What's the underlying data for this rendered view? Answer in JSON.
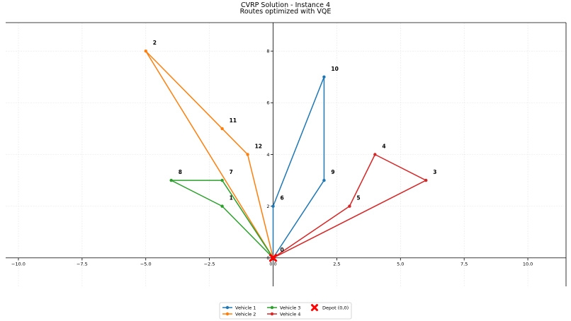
{
  "chart_data": {
    "type": "line",
    "title": "CVRP Solution - Instance 4",
    "subtitle": "Routes optimized with VQE",
    "xlabel": "",
    "ylabel": "",
    "xlim": [
      -10.5,
      11.5
    ],
    "ylim": [
      -1.1,
      9.1
    ],
    "x_ticks": [
      -10.0,
      -7.5,
      -5.0,
      -2.5,
      0.0,
      2.5,
      5.0,
      7.5,
      10.0
    ],
    "x_tick_labels": [
      "−10.0",
      "−7.5",
      "−5.0",
      "−2.5",
      "0.0",
      "2.5",
      "5.0",
      "7.5",
      "10.0"
    ],
    "y_ticks": [
      0,
      2,
      4,
      6,
      8
    ],
    "y_tick_labels": [
      "0",
      "2",
      "4",
      "6",
      "8"
    ],
    "grid": true,
    "legend_position": "bottom-center",
    "nodes": [
      {
        "id": "0",
        "x": 0,
        "y": 0
      },
      {
        "id": "1",
        "x": -2,
        "y": 2
      },
      {
        "id": "2",
        "x": -5,
        "y": 8
      },
      {
        "id": "3",
        "x": 6,
        "y": 3
      },
      {
        "id": "4",
        "x": 4,
        "y": 4
      },
      {
        "id": "5",
        "x": 3,
        "y": 2
      },
      {
        "id": "6",
        "x": 0,
        "y": 2
      },
      {
        "id": "7",
        "x": -2,
        "y": 3
      },
      {
        "id": "8",
        "x": -4,
        "y": 3
      },
      {
        "id": "9",
        "x": 2,
        "y": 3
      },
      {
        "id": "10",
        "x": 2,
        "y": 7
      },
      {
        "id": "11",
        "x": -2,
        "y": 5
      },
      {
        "id": "12",
        "x": -1,
        "y": 4
      }
    ],
    "series": [
      {
        "name": "Vehicle 1",
        "color": "#1f77b4",
        "route": [
          "0",
          "6",
          "10",
          "9",
          "0"
        ]
      },
      {
        "name": "Vehicle 2",
        "color": "#ff7f0e",
        "route": [
          "0",
          "12",
          "11",
          "2",
          "0"
        ]
      },
      {
        "name": "Vehicle 3",
        "color": "#2ca02c",
        "route": [
          "0",
          "1",
          "8",
          "7",
          "0"
        ]
      },
      {
        "name": "Vehicle 4",
        "color": "#d62728",
        "route": [
          "0",
          "5",
          "4",
          "3",
          "0"
        ]
      }
    ],
    "depot": {
      "label": "Depot (0,0)",
      "x": 0,
      "y": 0,
      "color": "#ff0000"
    }
  }
}
